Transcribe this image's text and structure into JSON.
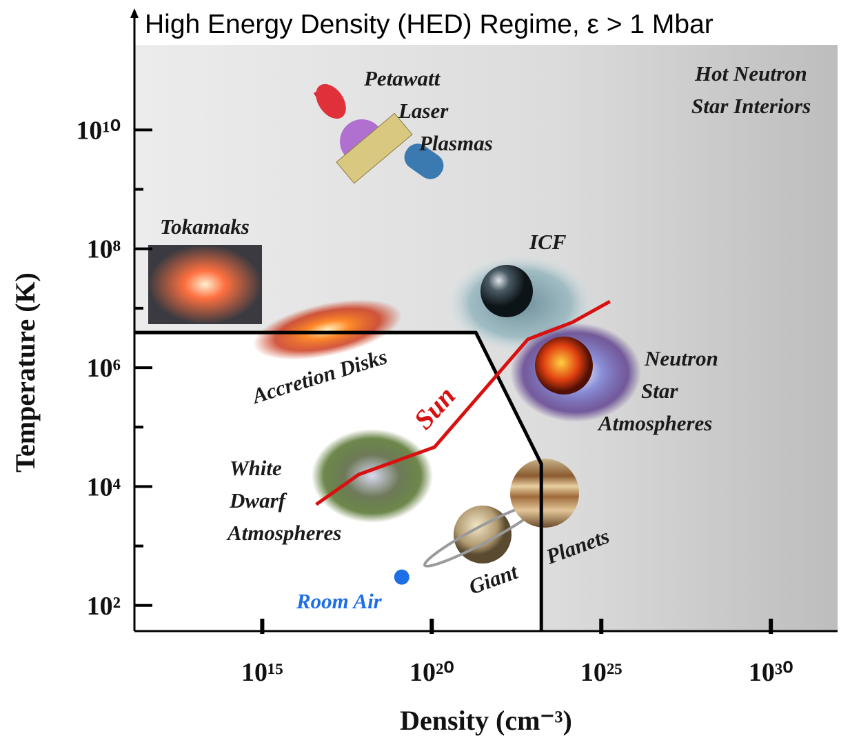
{
  "chart_data": {
    "type": "line",
    "title": "High Energy Density (HED) Regime, ε > 1 Mbar",
    "x_label": "Density (cm⁻³)",
    "y_label": "Temperature (K)",
    "x_scale": "log",
    "y_scale": "log",
    "xlim": [
      170000000000.0,
      9.3e+31
    ],
    "ylim": [
      37,
      270000000000.0
    ],
    "xticks": [
      {
        "value": 1000000000000000.0,
        "label": "10¹⁵"
      },
      {
        "value": 1e+20,
        "label": "10²⁰"
      },
      {
        "value": 1e+25,
        "label": "10²⁵"
      },
      {
        "value": 1e+30,
        "label": "10³⁰"
      }
    ],
    "yticks": [
      {
        "value": 100,
        "label": "10²"
      },
      {
        "value": 10000,
        "label": "10⁴"
      },
      {
        "value": 1000000,
        "label": "10⁶"
      },
      {
        "value": 100000000,
        "label": "10⁸"
      },
      {
        "value": 10000000000,
        "label": "10¹⁰"
      }
    ],
    "y_minor_ticks": [
      1000,
      100000,
      10000000,
      1000000000
    ],
    "series": [
      {
        "color": "#000000",
        "x": [
          170000000000.0,
          2e+21,
          1.7e+23,
          1.7e+23
        ],
        "values": [
          3900000.0,
          3900000.0,
          24000,
          37
        ]
      },
      {
        "name": "Sun",
        "color": "#d81010",
        "x": [
          3.9e+16,
          7.1e+17,
          1.2e+20,
          3.2e+21,
          6.8e+22,
          1.4e+24,
          1.8e+25
        ],
        "values": [
          5000,
          16000,
          46000,
          400000,
          3000000,
          5800000,
          13000000
        ]
      },
      {
        "name": "Room Air",
        "color": "#1e6ee6",
        "marker": true,
        "x": [
          1.3e+19
        ],
        "values": [
          300
        ]
      }
    ],
    "annotations": [
      [
        "Petawatt",
        "Laser",
        "Plasmas"
      ],
      [
        "Hot Neutron",
        "Star Interiors"
      ],
      [
        "Tokamaks"
      ],
      [
        "ICF"
      ],
      [
        "Accretion Disks"
      ],
      [
        "Neutron",
        "Star",
        "Atmospheres"
      ],
      [
        "White",
        "Dwarf",
        "Atmospheres"
      ],
      [
        "Giant"
      ],
      [
        "Planets"
      ]
    ]
  }
}
